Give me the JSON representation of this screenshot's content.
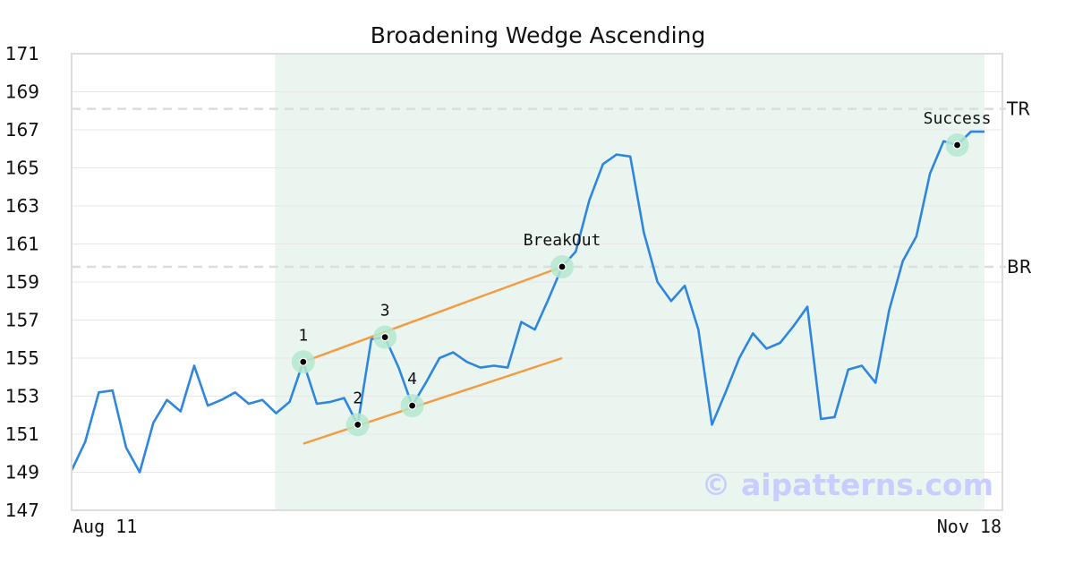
{
  "chart_data": {
    "type": "line",
    "title": "Broadening Wedge Ascending",
    "xlabel": "",
    "ylabel": "",
    "ylim": [
      147,
      171
    ],
    "yticks": [
      147,
      149,
      151,
      153,
      155,
      157,
      159,
      161,
      163,
      165,
      167,
      169,
      171
    ],
    "xtick_labels": [
      "Aug 11",
      "Nov 18"
    ],
    "grid": true,
    "colors": {
      "price": "#2e86de",
      "trendline": "#f39c42",
      "highlight": "#eaf5f0",
      "marker_halo": "#b5e8cf",
      "reference": "#dddddd",
      "watermark": "#c8ccff"
    },
    "series": [
      {
        "values": [
          149.1,
          150.6,
          153.2,
          153.3,
          150.3,
          149.0,
          151.6,
          152.8,
          152.2,
          154.6,
          152.5,
          152.8,
          153.2,
          152.6,
          152.8,
          152.1,
          152.7,
          154.8,
          152.6,
          152.7,
          152.9,
          151.5,
          156.0,
          156.1,
          154.5,
          152.5,
          153.7,
          155.0,
          155.3,
          154.8,
          154.5,
          154.6,
          154.5,
          156.9,
          156.5,
          158.1,
          159.8,
          160.6,
          163.3,
          165.2,
          165.7,
          165.6,
          161.6,
          159.0,
          158.0,
          158.8,
          156.5,
          151.5,
          153.2,
          155.0,
          156.3,
          155.5,
          155.8,
          156.7,
          157.7,
          151.8,
          151.9,
          154.4,
          154.6,
          153.7,
          157.5,
          160.1,
          161.4,
          164.7,
          166.4,
          166.2,
          166.9,
          166.9
        ]
      }
    ],
    "highlight_range": [
      15,
      67
    ],
    "reference_lines": [
      {
        "label": "TR",
        "value": 168.1
      },
      {
        "label": "BR",
        "value": 159.8
      }
    ],
    "trendlines": [
      {
        "from": [
          17,
          154.8
        ],
        "to": [
          36,
          159.8
        ]
      },
      {
        "from": [
          17,
          150.5
        ],
        "to": [
          36,
          155.0
        ]
      }
    ],
    "annotations": [
      {
        "label": "1",
        "x": 17,
        "y": 154.8,
        "pos": "above"
      },
      {
        "label": "2",
        "x": 21,
        "y": 151.5,
        "pos": "above"
      },
      {
        "label": "3",
        "x": 23,
        "y": 156.1,
        "pos": "above"
      },
      {
        "label": "4",
        "x": 25,
        "y": 152.5,
        "pos": "above"
      },
      {
        "label": "BreakOut",
        "x": 36,
        "y": 159.8,
        "pos": "above"
      },
      {
        "label": "Success",
        "x": 65,
        "y": 166.2,
        "pos": "above"
      }
    ],
    "watermark": "© aipatterns.com"
  }
}
